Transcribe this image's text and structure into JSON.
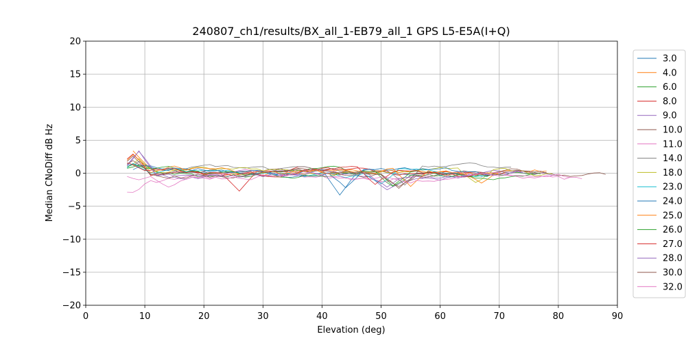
{
  "chart_data": {
    "type": "line",
    "title": "240807_ch1/results/BX_all_1-EB79_all_1 GPS L5-E5A(I+Q)",
    "xlabel": "Elevation (deg)",
    "ylabel": "Median CNoDiff dB Hz",
    "xlim": [
      0,
      90
    ],
    "ylim": [
      -20,
      20
    ],
    "xticks": [
      0,
      10,
      20,
      30,
      40,
      50,
      60,
      70,
      80,
      90
    ],
    "yticks": [
      -20,
      -15,
      -10,
      -5,
      0,
      5,
      10,
      15,
      20
    ],
    "grid": true,
    "legend_position": "right",
    "series": [
      {
        "name": "3.0",
        "color": "#1f77b4",
        "start": 7,
        "end": 69,
        "peak_elev": 8,
        "peak_val": 1.4,
        "base": 0.2,
        "amp": 0.7,
        "dip_elev": 43,
        "dip_val": -3.3
      },
      {
        "name": "4.0",
        "color": "#ff7f0e",
        "start": 8,
        "end": 78,
        "peak_elev": 8,
        "peak_val": 3.4,
        "base": 0.1,
        "amp": 0.6,
        "dip_elev": 67,
        "dip_val": -1.5
      },
      {
        "name": "6.0",
        "color": "#2ca02c",
        "start": 7,
        "end": 77,
        "peak_elev": 9,
        "peak_val": 1.2,
        "base": 0.0,
        "amp": 0.6,
        "dip_elev": 52,
        "dip_val": -2.0
      },
      {
        "name": "8.0",
        "color": "#d62728",
        "start": 7,
        "end": 66,
        "peak_elev": 8,
        "peak_val": 2.9,
        "base": 0.2,
        "amp": 0.7,
        "dip_elev": 26,
        "dip_val": -2.7
      },
      {
        "name": "9.0",
        "color": "#9467bd",
        "start": 7,
        "end": 80,
        "peak_elev": 9,
        "peak_val": 3.4,
        "base": -0.2,
        "amp": 0.6,
        "dip_elev": 51,
        "dip_val": -2.5
      },
      {
        "name": "10.0",
        "color": "#8c564b",
        "start": 7,
        "end": 88,
        "peak_elev": 8,
        "peak_val": 2.6,
        "base": 0.1,
        "amp": 0.6,
        "dip_elev": 53,
        "dip_val": -2.3
      },
      {
        "name": "11.0",
        "color": "#e377c2",
        "start": 7,
        "end": 82,
        "peak_elev": 7,
        "peak_val": -2.8,
        "base": -0.6,
        "amp": 0.7,
        "dip_elev": 8,
        "dip_val": -2.9
      },
      {
        "name": "14.0",
        "color": "#7f7f7f",
        "start": 8,
        "end": 72,
        "peak_elev": 9,
        "peak_val": 1.8,
        "base": 0.5,
        "amp": 0.6,
        "dip_elev": 54,
        "dip_val": -1.8
      },
      {
        "name": "18.0",
        "color": "#bcbd22",
        "start": 8,
        "end": 79,
        "peak_elev": 9,
        "peak_val": 2.2,
        "base": 0.2,
        "amp": 0.6,
        "dip_elev": 66,
        "dip_val": -1.4
      },
      {
        "name": "23.0",
        "color": "#17becf",
        "start": 7,
        "end": 68,
        "peak_elev": 8,
        "peak_val": 1.5,
        "base": -0.1,
        "amp": 0.6,
        "dip_elev": 50,
        "dip_val": -1.6
      },
      {
        "name": "24.0",
        "color": "#1f77b4",
        "start": 8,
        "end": 69,
        "peak_elev": 10,
        "peak_val": 1.2,
        "base": 0.3,
        "amp": 0.6,
        "dip_elev": 44,
        "dip_val": -2.2
      },
      {
        "name": "25.0",
        "color": "#ff7f0e",
        "start": 7,
        "end": 71,
        "peak_elev": 8,
        "peak_val": 2.8,
        "base": 0.2,
        "amp": 0.7,
        "dip_elev": 55,
        "dip_val": -2.0
      },
      {
        "name": "26.0",
        "color": "#2ca02c",
        "start": 7,
        "end": 77,
        "peak_elev": 8,
        "peak_val": 1.3,
        "base": 0.0,
        "amp": 0.6,
        "dip_elev": 52,
        "dip_val": -1.9
      },
      {
        "name": "27.0",
        "color": "#d62728",
        "start": 7,
        "end": 67,
        "peak_elev": 7,
        "peak_val": 1.6,
        "base": 0.1,
        "amp": 0.6,
        "dip_elev": 49,
        "dip_val": -1.7
      },
      {
        "name": "28.0",
        "color": "#9467bd",
        "start": 7,
        "end": 74,
        "peak_elev": 9,
        "peak_val": 3.3,
        "base": -0.3,
        "amp": 0.6,
        "dip_elev": 51,
        "dip_val": -2.1
      },
      {
        "name": "30.0",
        "color": "#8c564b",
        "start": 7,
        "end": 78,
        "peak_elev": 8,
        "peak_val": 1.9,
        "base": 0.0,
        "amp": 0.6,
        "dip_elev": 53,
        "dip_val": -2.0
      },
      {
        "name": "32.0",
        "color": "#e377c2",
        "start": 7,
        "end": 84,
        "peak_elev": 9,
        "peak_val": -1.0,
        "base": -0.5,
        "amp": 0.6,
        "dip_elev": 14,
        "dip_val": -2.1
      }
    ]
  }
}
